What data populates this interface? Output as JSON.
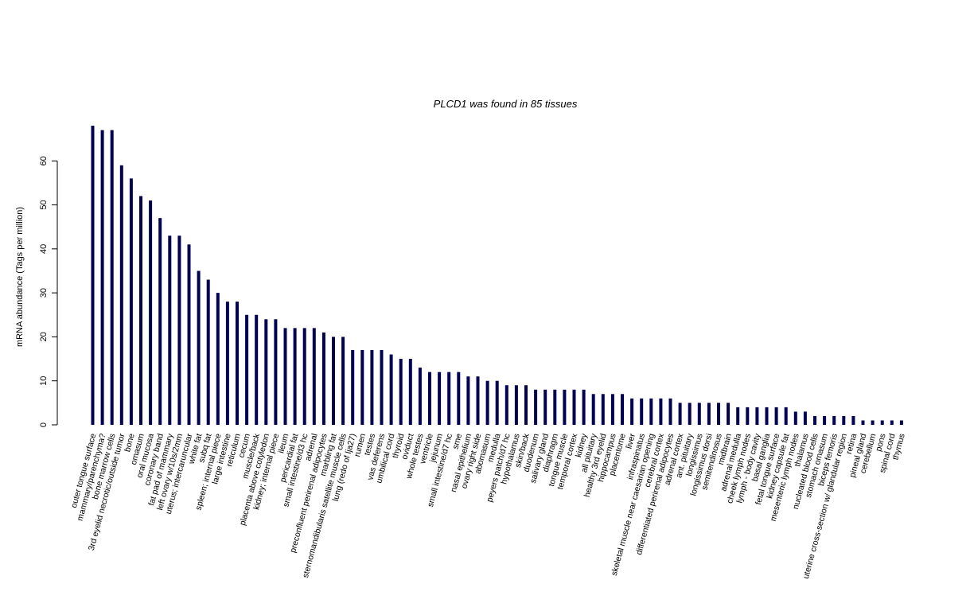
{
  "chart_data": {
    "type": "bar",
    "title": "PLCD1  was found in  85  tissues",
    "xlabel": "",
    "ylabel": "mRNA abundance (Tags per million)",
    "ylim": [
      0,
      68
    ],
    "yticks": [
      0,
      10,
      20,
      30,
      40,
      50,
      60
    ],
    "grid": false,
    "colors": {
      "bar": "#00005a"
    },
    "categories": [
      "outer tongue surface",
      "mammary/parenchyma?",
      "bone marrow cells",
      "3rd eyelid necrotic/outside tumor",
      "bone",
      "omasum",
      "oral mucosa",
      "coronary band",
      "fat pad of mammary",
      "left ovary w/10s/2mm",
      "uterus; intercaruncular",
      "white fat",
      "subq fat",
      "spleen; internal piece",
      "large intestine",
      "reticulum",
      "cecum",
      "muscle/back",
      "placenta above cotyledon",
      "kidney; internal piece",
      "ileum",
      "pericardial fat",
      "small intestine/d3 hc",
      "adrenal",
      "preconfluent perirenal adipocytes",
      "marbling fat",
      "sternomandibularis satellite muscle cells",
      "lung (redo of lja27)",
      "rumen",
      "testes",
      "vas deferens",
      "umbilical cord",
      "thyroid",
      "oviduct",
      "whole testes",
      "ventricle",
      "jejunum",
      "small intestine/d7 hc",
      "sme",
      "nasal epithelium",
      "ovary right side",
      "abomasum",
      "medulla",
      "peyers patch/d7 hc",
      "hypothalamus",
      "skin/back",
      "duodenum",
      "salivary gland",
      "diaphragm",
      "tongue muscle",
      "temporal cortex",
      "kidney",
      "all pituitary",
      "healthy 3rd eyelid",
      "hippocampus",
      "placentome",
      "liver",
      "infraspinatus",
      "skeletal muscle near caesarian opening",
      "cerebral cortex",
      "differentiated perirenal adipocytes",
      "adrenal cortex",
      "ant. pituitary",
      "longissimus",
      "longissimus dorsi",
      "semitendinosus",
      "midbrain",
      "adrenal medulla",
      "cheek lymph nodes",
      "lymph - body cavity",
      "basal ganglia",
      "fetal tongue surface",
      "kidney capsule fat",
      "mesenteric lymph nodes",
      "thalamus",
      "nucleated blood cells",
      "stomach omasum",
      "biceps femoris",
      "uterine cross-section w/ glandular region",
      "retina",
      "pineal gland",
      "cerebellum",
      "pons",
      "spinal cord",
      "thymus"
    ],
    "values": [
      68,
      67,
      67,
      59,
      56,
      52,
      51,
      47,
      43,
      43,
      41,
      35,
      33,
      30,
      28,
      28,
      25,
      25,
      24,
      24,
      22,
      22,
      22,
      22,
      21,
      20,
      20,
      17,
      17,
      17,
      17,
      16,
      15,
      15,
      13,
      12,
      12,
      12,
      12,
      11,
      11,
      10,
      10,
      9,
      9,
      9,
      8,
      8,
      8,
      8,
      8,
      8,
      7,
      7,
      7,
      7,
      6,
      6,
      6,
      6,
      6,
      5,
      5,
      5,
      5,
      5,
      5,
      4,
      4,
      4,
      4,
      4,
      4,
      3,
      3,
      2,
      2,
      2,
      2,
      2,
      1,
      1,
      1,
      1,
      1
    ]
  }
}
